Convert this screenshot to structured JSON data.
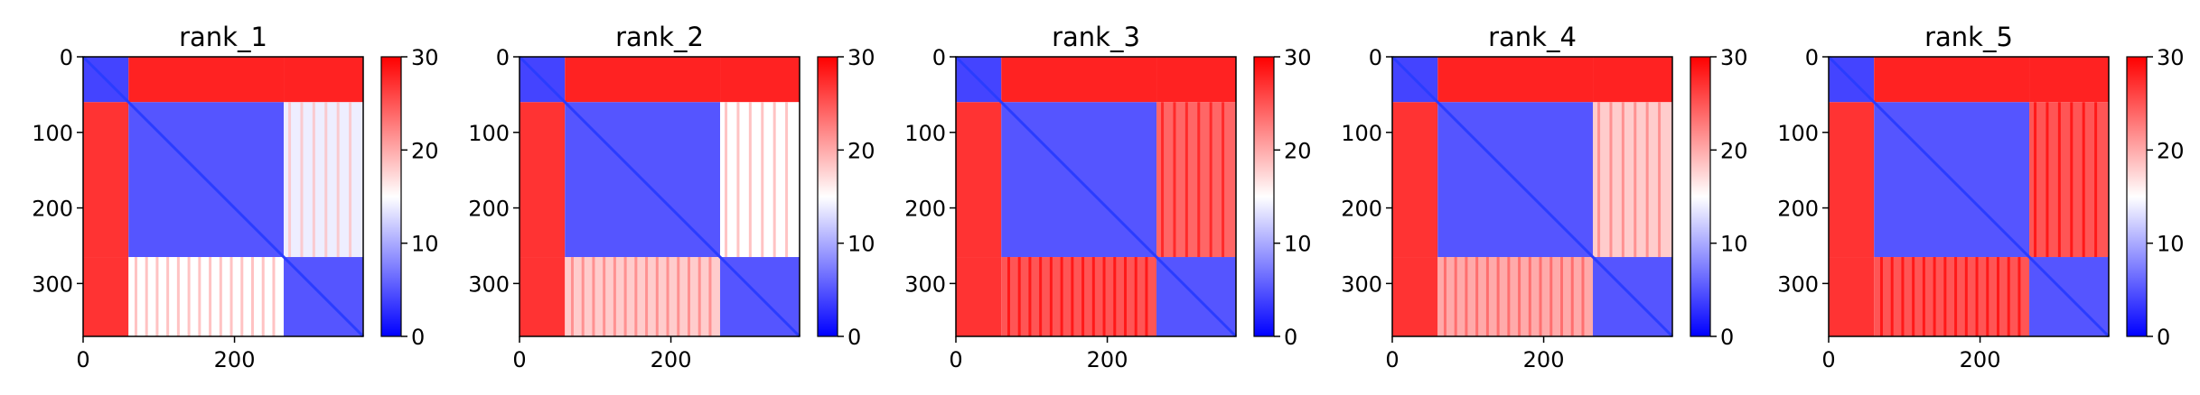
{
  "chart_data": [
    {
      "type": "heatmap",
      "title": "rank_1",
      "xlim": [
        0,
        370
      ],
      "ylim": [
        370,
        0
      ],
      "xticks": [
        0,
        200
      ],
      "yticks": [
        0,
        100,
        200,
        300
      ],
      "colorbar": {
        "ticks": [
          0,
          10,
          20,
          30
        ],
        "range": [
          0,
          30
        ],
        "colormap": "bwr"
      },
      "domains": [
        [
          0,
          60
        ],
        [
          60,
          265
        ],
        [
          265,
          370
        ]
      ]
    },
    {
      "type": "heatmap",
      "title": "rank_2",
      "xlim": [
        0,
        370
      ],
      "ylim": [
        370,
        0
      ],
      "xticks": [
        0,
        200
      ],
      "yticks": [
        0,
        100,
        200,
        300
      ],
      "colorbar": {
        "ticks": [
          0,
          10,
          20,
          30
        ],
        "range": [
          0,
          30
        ],
        "colormap": "bwr"
      },
      "domains": [
        [
          0,
          60
        ],
        [
          60,
          265
        ],
        [
          265,
          370
        ]
      ]
    },
    {
      "type": "heatmap",
      "title": "rank_3",
      "xlim": [
        0,
        370
      ],
      "ylim": [
        370,
        0
      ],
      "xticks": [
        0,
        200
      ],
      "yticks": [
        0,
        100,
        200,
        300
      ],
      "colorbar": {
        "ticks": [
          0,
          10,
          20,
          30
        ],
        "range": [
          0,
          30
        ],
        "colormap": "bwr"
      },
      "domains": [
        [
          0,
          60
        ],
        [
          60,
          265
        ],
        [
          265,
          370
        ]
      ]
    },
    {
      "type": "heatmap",
      "title": "rank_4",
      "xlim": [
        0,
        370
      ],
      "ylim": [
        370,
        0
      ],
      "xticks": [
        0,
        200
      ],
      "yticks": [
        0,
        100,
        200,
        300
      ],
      "colorbar": {
        "ticks": [
          0,
          10,
          20,
          30
        ],
        "range": [
          0,
          30
        ],
        "colormap": "bwr"
      },
      "domains": [
        [
          0,
          60
        ],
        [
          60,
          265
        ],
        [
          265,
          370
        ]
      ]
    },
    {
      "type": "heatmap",
      "title": "rank_5",
      "xlim": [
        0,
        370
      ],
      "ylim": [
        370,
        0
      ],
      "xticks": [
        0,
        200
      ],
      "yticks": [
        0,
        100,
        200,
        300
      ],
      "colorbar": {
        "ticks": [
          0,
          10,
          20,
          30
        ],
        "range": [
          0,
          30
        ],
        "colormap": "bwr"
      },
      "domains": [
        [
          0,
          60
        ],
        [
          60,
          265
        ],
        [
          265,
          370
        ]
      ]
    }
  ],
  "colors": {
    "low": "#0000ff",
    "mid": "#ffffff",
    "high": "#ff0000"
  }
}
